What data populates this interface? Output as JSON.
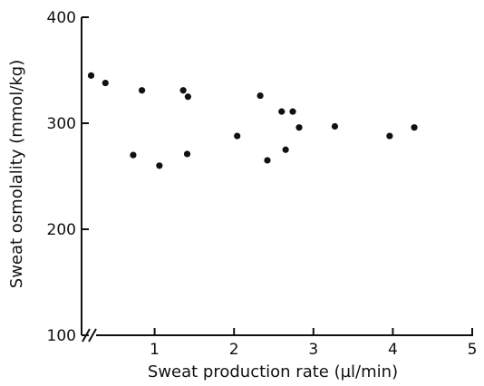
{
  "chart_data": {
    "type": "scatter",
    "title": "",
    "xlabel": "Sweat production rate (µl/min)",
    "ylabel": "Sweat osmolality (mmol/kg)",
    "xlim": [
      0,
      5
    ],
    "ylim": [
      100,
      400
    ],
    "x_ticks": [
      1,
      2,
      3,
      4,
      5
    ],
    "x_tick_labels": [
      "1",
      "2",
      "3",
      "4",
      "5"
    ],
    "y_ticks": [
      100,
      200,
      300,
      400
    ],
    "y_tick_labels": [
      "100",
      "200",
      "300",
      "400"
    ],
    "x_axis_break": true,
    "grid": false,
    "legend": "none",
    "marker_color": "#111111",
    "series": [
      {
        "points": [
          {
            "x": 0.2,
            "y": 345
          },
          {
            "x": 0.38,
            "y": 338
          },
          {
            "x": 0.73,
            "y": 270
          },
          {
            "x": 0.84,
            "y": 331
          },
          {
            "x": 1.06,
            "y": 260
          },
          {
            "x": 1.36,
            "y": 331
          },
          {
            "x": 1.41,
            "y": 271
          },
          {
            "x": 1.42,
            "y": 325
          },
          {
            "x": 2.04,
            "y": 288
          },
          {
            "x": 2.33,
            "y": 326
          },
          {
            "x": 2.42,
            "y": 265
          },
          {
            "x": 2.6,
            "y": 311
          },
          {
            "x": 2.65,
            "y": 275
          },
          {
            "x": 2.74,
            "y": 311
          },
          {
            "x": 2.82,
            "y": 296
          },
          {
            "x": 3.27,
            "y": 297
          },
          {
            "x": 3.96,
            "y": 288
          },
          {
            "x": 4.27,
            "y": 296
          }
        ]
      }
    ]
  }
}
